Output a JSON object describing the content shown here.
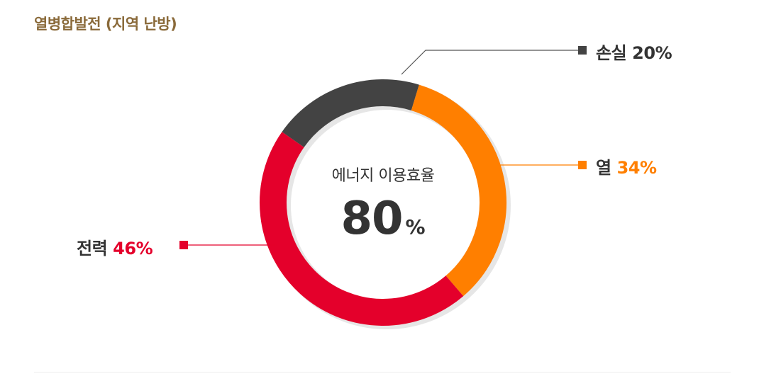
{
  "title": "열병합발전 (지역 난방)",
  "center": {
    "label": "에너지 이용효율",
    "value": "80",
    "unit": "%"
  },
  "colors": {
    "loss": "#434343",
    "heat": "#ff7f00",
    "power": "#e4002b",
    "title": "#8a6a3a"
  },
  "chart_data": {
    "type": "pie",
    "title": "열병합발전 (지역 난방)",
    "categories": [
      "손실",
      "열",
      "전력"
    ],
    "values": [
      20,
      34,
      46
    ],
    "unit": "%",
    "center_text": "에너지 이용효율 80%",
    "legend": "callout labels"
  },
  "labels": {
    "loss": {
      "name": "손실",
      "value": "20%"
    },
    "heat": {
      "name": "열",
      "value": "34%"
    },
    "power": {
      "name": "전력",
      "value": "46%"
    }
  }
}
